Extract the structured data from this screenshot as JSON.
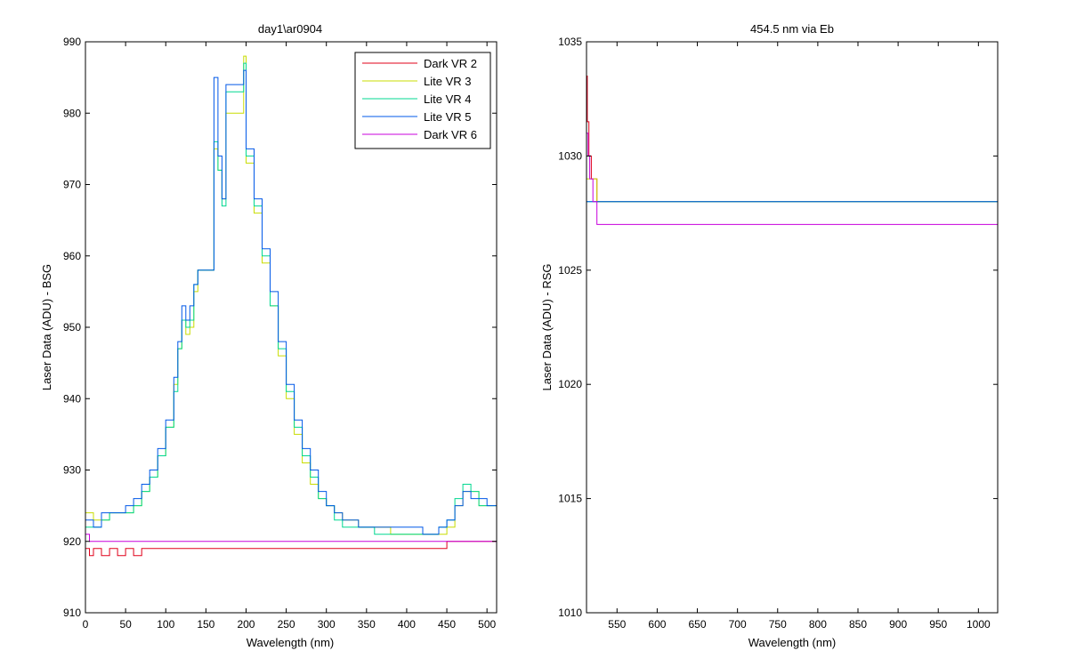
{
  "chart_data": [
    {
      "type": "line",
      "title": "day1\\ar0904",
      "xlabel": "Wavelength (nm)",
      "ylabel": "Laser Data (ADU) - BSG",
      "xlim": [
        0,
        512
      ],
      "ylim": [
        910,
        990
      ],
      "xticks": [
        0,
        50,
        100,
        150,
        200,
        250,
        300,
        350,
        400,
        450,
        500
      ],
      "yticks": [
        910,
        920,
        930,
        940,
        950,
        960,
        970,
        980,
        990
      ],
      "legend_position": "top-right",
      "series": [
        {
          "name": "Dark VR 2",
          "color": "#e0001a",
          "x": [
            0,
            5,
            10,
            20,
            30,
            40,
            50,
            60,
            70,
            75,
            80,
            100,
            120,
            150,
            200,
            250,
            300,
            350,
            400,
            430,
            450,
            460,
            480,
            500,
            512
          ],
          "y": [
            919,
            918,
            919,
            918,
            919,
            918,
            919,
            918,
            919,
            919,
            919,
            919,
            919,
            919,
            919,
            919,
            919,
            919,
            919,
            919,
            920,
            920,
            920,
            920,
            920
          ]
        },
        {
          "name": "Lite VR 3",
          "color": "#c8dc00",
          "x": [
            0,
            10,
            20,
            30,
            40,
            50,
            60,
            70,
            80,
            90,
            100,
            110,
            115,
            120,
            125,
            130,
            135,
            140,
            160,
            165,
            170,
            175,
            197,
            200,
            210,
            220,
            230,
            240,
            250,
            260,
            270,
            280,
            290,
            300,
            310,
            320,
            340,
            360,
            380,
            400,
            420,
            440,
            450,
            460,
            470,
            480,
            490,
            500,
            512
          ],
          "y": [
            924,
            923,
            923,
            924,
            924,
            924,
            925,
            927,
            929,
            932,
            936,
            942,
            947,
            951,
            949,
            950,
            955,
            958,
            975,
            972,
            968,
            980,
            988,
            973,
            966,
            959,
            953,
            946,
            940,
            935,
            931,
            928,
            926,
            925,
            924,
            923,
            922,
            922,
            921,
            921,
            921,
            921,
            922,
            925,
            927,
            927,
            925,
            925,
            925
          ]
        },
        {
          "name": "Lite VR 4",
          "color": "#00d890",
          "x": [
            0,
            10,
            20,
            30,
            40,
            50,
            60,
            70,
            80,
            90,
            100,
            110,
            115,
            120,
            125,
            130,
            135,
            140,
            160,
            165,
            170,
            175,
            197,
            200,
            210,
            220,
            230,
            240,
            250,
            260,
            270,
            280,
            290,
            300,
            310,
            320,
            340,
            360,
            380,
            400,
            420,
            440,
            450,
            460,
            470,
            480,
            490,
            500,
            512
          ],
          "y": [
            922,
            922,
            923,
            924,
            924,
            924,
            925,
            927,
            929,
            932,
            936,
            941,
            947,
            951,
            950,
            951,
            956,
            958,
            976,
            972,
            967,
            983,
            987,
            974,
            967,
            960,
            953,
            947,
            941,
            936,
            932,
            929,
            926,
            925,
            923,
            922,
            922,
            921,
            921,
            921,
            921,
            922,
            923,
            926,
            928,
            927,
            925,
            925,
            925
          ]
        },
        {
          "name": "Lite VR 5",
          "color": "#0058e8",
          "x": [
            0,
            10,
            20,
            30,
            40,
            50,
            60,
            70,
            80,
            90,
            100,
            110,
            115,
            120,
            125,
            130,
            135,
            140,
            160,
            165,
            170,
            175,
            197,
            200,
            210,
            220,
            230,
            240,
            250,
            260,
            270,
            280,
            290,
            300,
            310,
            320,
            340,
            360,
            380,
            400,
            420,
            440,
            450,
            460,
            470,
            480,
            490,
            500,
            512
          ],
          "y": [
            923,
            922,
            924,
            924,
            924,
            925,
            926,
            928,
            930,
            933,
            937,
            943,
            948,
            953,
            951,
            953,
            956,
            958,
            985,
            974,
            968,
            984,
            986,
            975,
            968,
            961,
            955,
            948,
            942,
            937,
            933,
            930,
            927,
            925,
            924,
            923,
            922,
            922,
            922,
            922,
            921,
            922,
            923,
            925,
            927,
            926,
            926,
            925,
            926
          ]
        },
        {
          "name": "Dark VR 6",
          "color": "#c800dc",
          "x": [
            0,
            5,
            10,
            20,
            40,
            60,
            80,
            100,
            120,
            150,
            200,
            250,
            300,
            350,
            400,
            450,
            480,
            500,
            512
          ],
          "y": [
            921,
            920,
            920,
            920,
            920,
            920,
            920,
            920,
            920,
            920,
            920,
            920,
            920,
            920,
            920,
            920,
            920,
            920,
            920
          ]
        }
      ]
    },
    {
      "type": "line",
      "title": "454.5 nm via Eb",
      "xlabel": "Wavelength (nm)",
      "ylabel": "Laser Data (ADU) - RSG",
      "xlim": [
        512,
        1024
      ],
      "ylim": [
        1010,
        1035
      ],
      "xticks": [
        550,
        600,
        650,
        700,
        750,
        800,
        850,
        900,
        950,
        1000
      ],
      "yticks": [
        1010,
        1015,
        1020,
        1025,
        1030,
        1035
      ],
      "series": [
        {
          "name": "Dark VR 2",
          "color": "#e0001a",
          "x": [
            512,
            513,
            515,
            518,
            525,
            1024
          ],
          "y": [
            1033.5,
            1031.5,
            1030,
            1029,
            1028,
            1028
          ]
        },
        {
          "name": "Lite VR 3",
          "color": "#c8dc00",
          "x": [
            512,
            525,
            1024
          ],
          "y": [
            1029,
            1028,
            1028
          ]
        },
        {
          "name": "Lite VR 4",
          "color": "#00d890",
          "x": [
            512,
            525,
            1024
          ],
          "y": [
            1028,
            1028,
            1028
          ]
        },
        {
          "name": "Lite VR 5",
          "color": "#0058e8",
          "x": [
            512,
            525,
            1024
          ],
          "y": [
            1028,
            1028,
            1028
          ]
        },
        {
          "name": "Dark VR 6",
          "color": "#c800dc",
          "x": [
            512,
            514,
            516,
            520,
            525,
            1024
          ],
          "y": [
            1031,
            1030,
            1029,
            1028,
            1027,
            1027
          ]
        }
      ]
    }
  ]
}
